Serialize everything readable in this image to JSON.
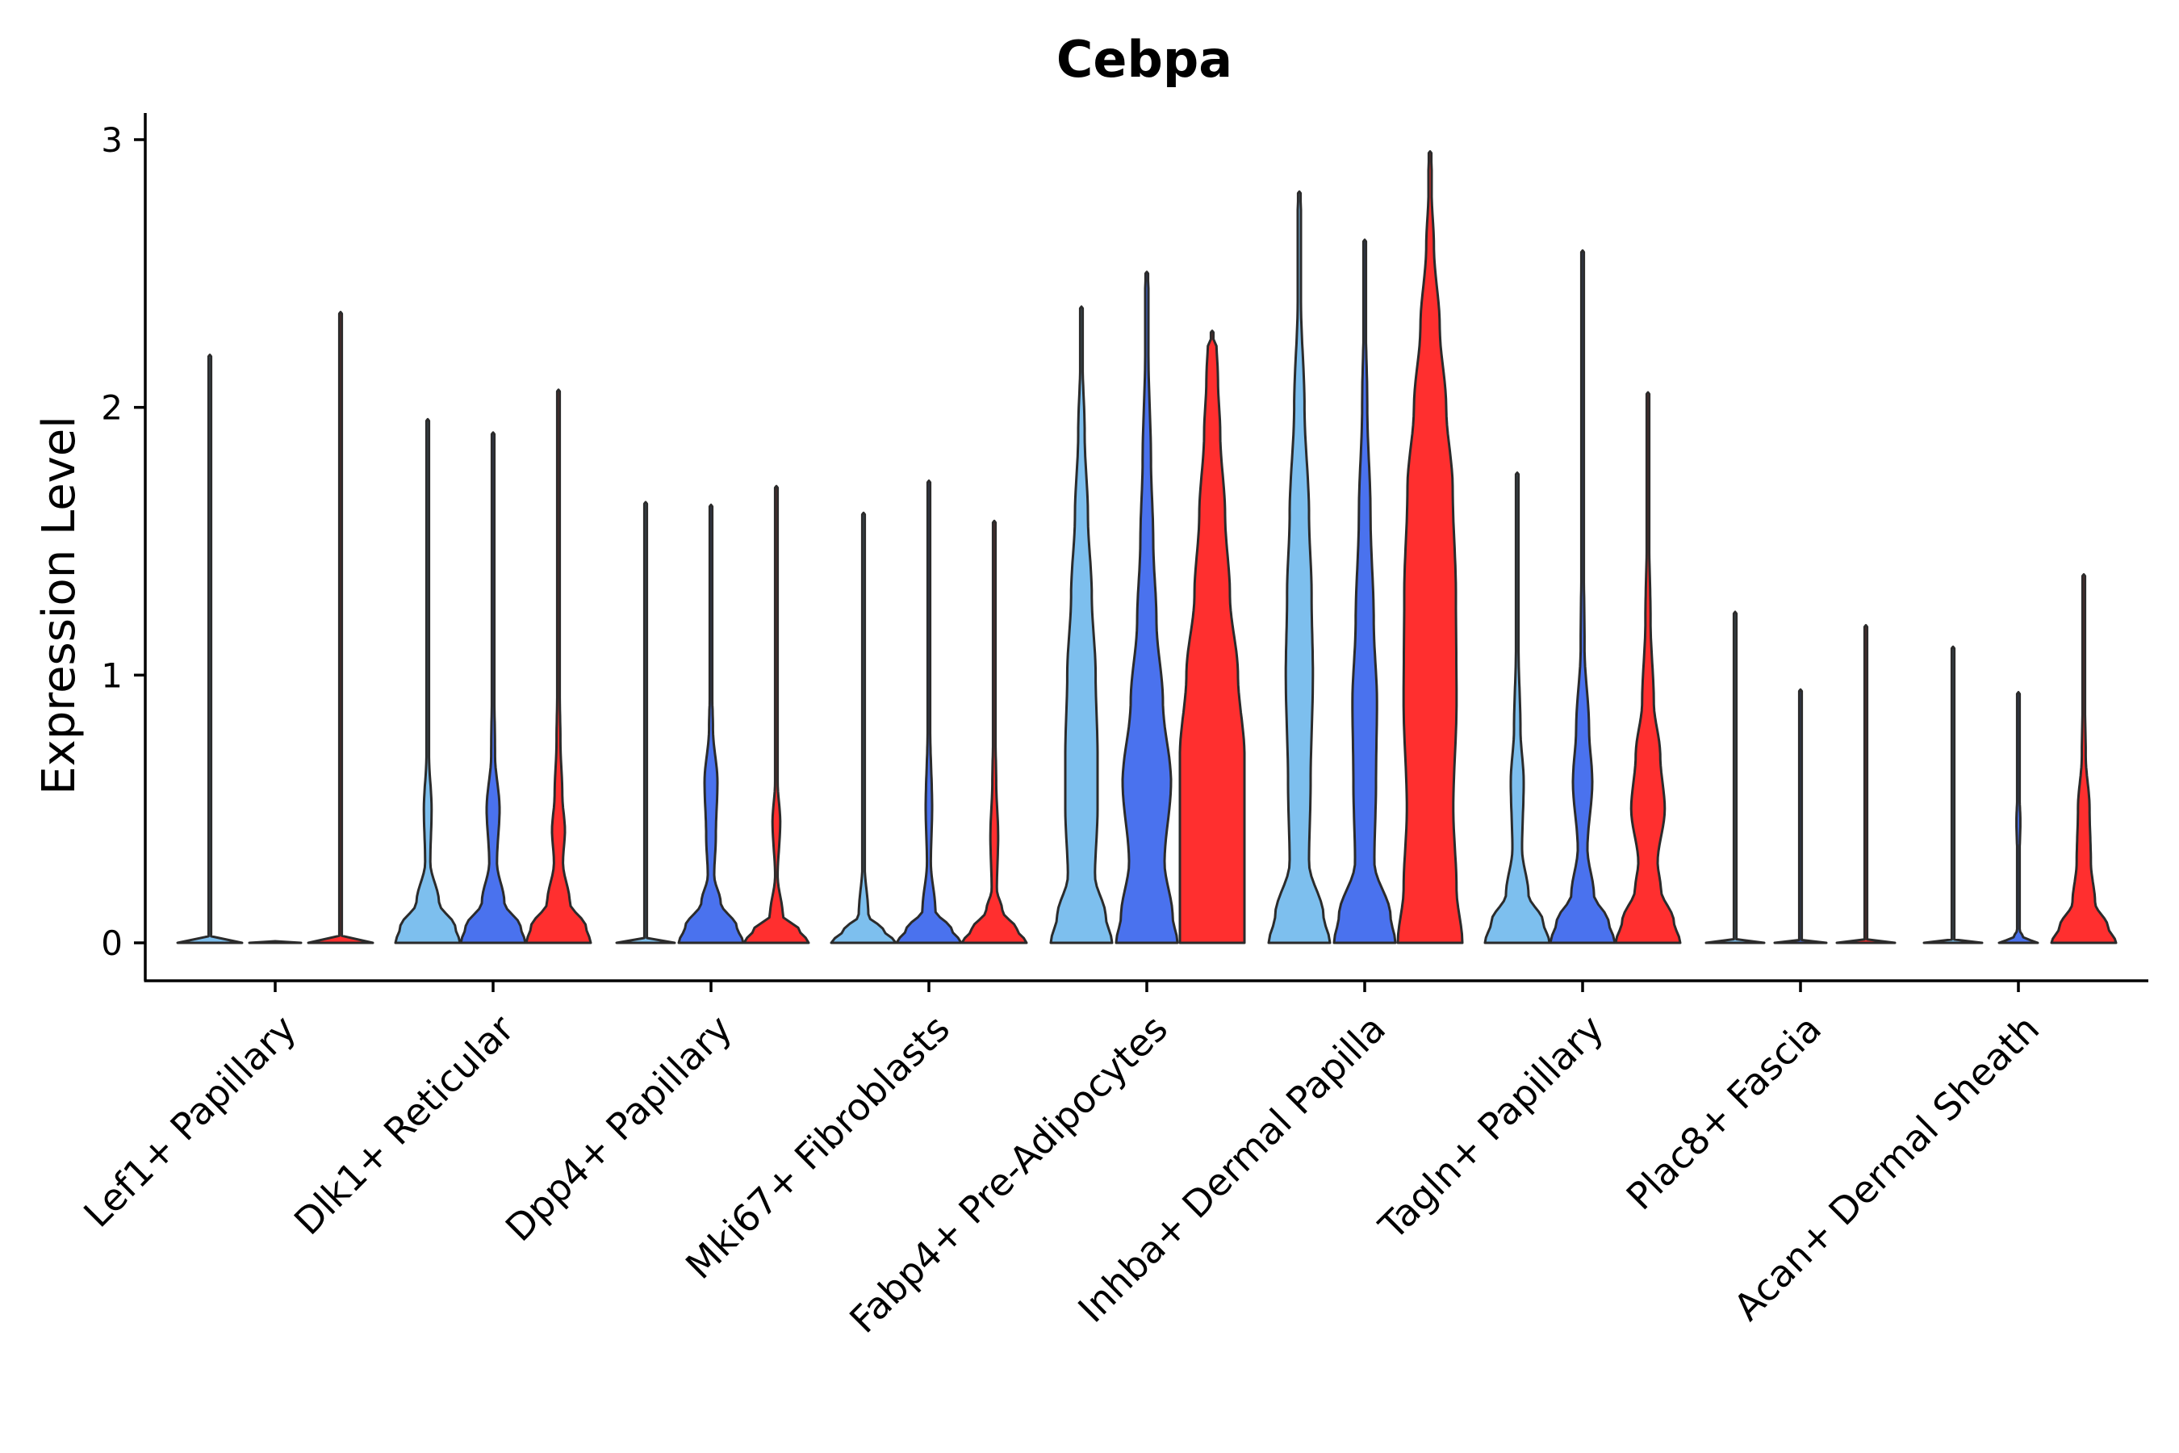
{
  "chart_data": {
    "type": "violin",
    "title": "Cebpa",
    "xlabel": "",
    "ylabel": "Expression Level",
    "ylim": [
      -0.15,
      3.1
    ],
    "yticks": [
      0,
      1,
      2,
      3
    ],
    "grid": false,
    "legend": "none",
    "group_colors": [
      "#7dbfee",
      "#4a72ee",
      "#ff2f2f"
    ],
    "categories": [
      {
        "label": "Lef1+ Papillary",
        "violins": [
          {
            "max": 2.19,
            "shape": [
              [
                0,
                1
              ],
              [
                0.002,
                0.01
              ],
              [
                0.2,
                0.0
              ]
            ]
          },
          {
            "max": 0.0,
            "shape": [
              [
                0,
                0.8
              ],
              [
                0.004,
                0.01
              ],
              [
                0.02,
                0.0
              ]
            ]
          },
          {
            "max": 2.35,
            "shape": [
              [
                0,
                1
              ],
              [
                0.002,
                0.01
              ],
              [
                0.2,
                0.0
              ]
            ]
          }
        ]
      },
      {
        "label": "Dlk1+ Reticular",
        "violins": [
          {
            "max": 1.95,
            "shape": [
              [
                0,
                1
              ],
              [
                0.06,
                0.85
              ],
              [
                0.15,
                0.35
              ],
              [
                0.3,
                0.08
              ],
              [
                0.5,
                0.12
              ],
              [
                0.7,
                0.04
              ],
              [
                1.0,
                0.02
              ],
              [
                1.5,
                0.01
              ]
            ]
          },
          {
            "max": 1.9,
            "shape": [
              [
                0,
                1
              ],
              [
                0.06,
                0.85
              ],
              [
                0.15,
                0.35
              ],
              [
                0.3,
                0.12
              ],
              [
                0.5,
                0.2
              ],
              [
                0.7,
                0.06
              ],
              [
                1.0,
                0.03
              ],
              [
                1.5,
                0.01
              ]
            ]
          },
          {
            "max": 2.06,
            "shape": [
              [
                0,
                1
              ],
              [
                0.06,
                0.85
              ],
              [
                0.15,
                0.35
              ],
              [
                0.3,
                0.14
              ],
              [
                0.42,
                0.2
              ],
              [
                0.55,
                0.12
              ],
              [
                0.75,
                0.06
              ],
              [
                1.0,
                0.03
              ],
              [
                1.5,
                0.01
              ]
            ]
          }
        ]
      },
      {
        "label": "Dpp4+ Papillary",
        "violins": [
          {
            "max": 1.64,
            "shape": [
              [
                0,
                0.9
              ],
              [
                0.004,
                0.01
              ],
              [
                0.2,
                0.0
              ]
            ]
          },
          {
            "max": 1.63,
            "shape": [
              [
                0,
                1
              ],
              [
                0.06,
                0.8
              ],
              [
                0.15,
                0.3
              ],
              [
                0.25,
                0.1
              ],
              [
                0.4,
                0.15
              ],
              [
                0.6,
                0.2
              ],
              [
                0.8,
                0.06
              ],
              [
                1.0,
                0.02
              ],
              [
                1.4,
                0.01
              ]
            ]
          },
          {
            "max": 1.7,
            "shape": [
              [
                0,
                1
              ],
              [
                0.05,
                0.7
              ],
              [
                0.1,
                0.2
              ],
              [
                0.25,
                0.04
              ],
              [
                0.45,
                0.12
              ],
              [
                0.6,
                0.04
              ],
              [
                1.0,
                0.015
              ]
            ]
          }
        ]
      },
      {
        "label": "Mki67+ Fibroblasts",
        "violins": [
          {
            "max": 1.6,
            "shape": [
              [
                0,
                1
              ],
              [
                0.05,
                0.6
              ],
              [
                0.1,
                0.15
              ],
              [
                0.3,
                0.03
              ],
              [
                0.6,
                0.02
              ],
              [
                1.0,
                0.01
              ]
            ]
          },
          {
            "max": 1.72,
            "shape": [
              [
                0,
                1
              ],
              [
                0.05,
                0.7
              ],
              [
                0.12,
                0.2
              ],
              [
                0.3,
                0.06
              ],
              [
                0.5,
                0.1
              ],
              [
                0.8,
                0.04
              ],
              [
                1.0,
                0.02
              ]
            ]
          },
          {
            "max": 1.57,
            "shape": [
              [
                0,
                1
              ],
              [
                0.05,
                0.7
              ],
              [
                0.12,
                0.25
              ],
              [
                0.2,
                0.08
              ],
              [
                0.4,
                0.12
              ],
              [
                0.6,
                0.06
              ],
              [
                0.8,
                0.03
              ],
              [
                1.1,
                0.01
              ]
            ]
          }
        ]
      },
      {
        "label": "Fabp4+ Pre-Adipocytes",
        "violins": [
          {
            "max": 2.37,
            "shape": [
              [
                0,
                0.95
              ],
              [
                0.1,
                0.75
              ],
              [
                0.25,
                0.42
              ],
              [
                0.5,
                0.5
              ],
              [
                0.7,
                0.5
              ],
              [
                1.0,
                0.44
              ],
              [
                1.3,
                0.32
              ],
              [
                1.6,
                0.2
              ],
              [
                1.9,
                0.1
              ],
              [
                2.2,
                0.03
              ]
            ]
          },
          {
            "max": 2.5,
            "shape": [
              [
                0,
                0.95
              ],
              [
                0.1,
                0.8
              ],
              [
                0.3,
                0.55
              ],
              [
                0.6,
                0.75
              ],
              [
                0.9,
                0.5
              ],
              [
                1.2,
                0.3
              ],
              [
                1.5,
                0.2
              ],
              [
                1.8,
                0.13
              ],
              [
                2.2,
                0.05
              ]
            ]
          },
          {
            "max": 2.28,
            "shape": [
              [
                0,
                1
              ],
              [
                0.3,
                1
              ],
              [
                0.7,
                1
              ],
              [
                1.0,
                0.8
              ],
              [
                1.3,
                0.55
              ],
              [
                1.6,
                0.4
              ],
              [
                1.9,
                0.25
              ],
              [
                2.1,
                0.18
              ],
              [
                2.28,
                0.12
              ]
            ]
          }
        ]
      },
      {
        "label": "Inhba+ Dermal Papilla",
        "violins": [
          {
            "max": 2.8,
            "shape": [
              [
                0,
                0.95
              ],
              [
                0.1,
                0.75
              ],
              [
                0.3,
                0.3
              ],
              [
                0.6,
                0.35
              ],
              [
                1.0,
                0.42
              ],
              [
                1.3,
                0.38
              ],
              [
                1.6,
                0.3
              ],
              [
                2.0,
                0.16
              ],
              [
                2.4,
                0.05
              ]
            ]
          },
          {
            "max": 2.62,
            "shape": [
              [
                0,
                0.95
              ],
              [
                0.1,
                0.8
              ],
              [
                0.3,
                0.3
              ],
              [
                0.6,
                0.35
              ],
              [
                0.9,
                0.38
              ],
              [
                1.2,
                0.28
              ],
              [
                1.6,
                0.18
              ],
              [
                2.0,
                0.08
              ],
              [
                2.4,
                0.02
              ]
            ]
          },
          {
            "max": 2.95,
            "shape": [
              [
                0,
                1
              ],
              [
                0.2,
                0.82
              ],
              [
                0.5,
                0.72
              ],
              [
                0.9,
                0.82
              ],
              [
                1.3,
                0.8
              ],
              [
                1.7,
                0.7
              ],
              [
                2.0,
                0.5
              ],
              [
                2.3,
                0.3
              ],
              [
                2.6,
                0.12
              ],
              [
                2.8,
                0.05
              ]
            ]
          }
        ]
      },
      {
        "label": "Tagln+ Papillary",
        "violins": [
          {
            "max": 1.75,
            "shape": [
              [
                0,
                1
              ],
              [
                0.08,
                0.8
              ],
              [
                0.18,
                0.35
              ],
              [
                0.35,
                0.15
              ],
              [
                0.6,
                0.2
              ],
              [
                0.8,
                0.1
              ],
              [
                1.1,
                0.04
              ],
              [
                1.5,
                0.01
              ]
            ]
          },
          {
            "max": 2.58,
            "shape": [
              [
                0,
                1
              ],
              [
                0.08,
                0.8
              ],
              [
                0.18,
                0.35
              ],
              [
                0.35,
                0.15
              ],
              [
                0.6,
                0.3
              ],
              [
                0.8,
                0.2
              ],
              [
                1.1,
                0.06
              ],
              [
                1.6,
                0.02
              ]
            ]
          },
          {
            "max": 2.05,
            "shape": [
              [
                0,
                1
              ],
              [
                0.08,
                0.8
              ],
              [
                0.2,
                0.4
              ],
              [
                0.3,
                0.3
              ],
              [
                0.5,
                0.52
              ],
              [
                0.7,
                0.38
              ],
              [
                0.9,
                0.18
              ],
              [
                1.2,
                0.08
              ],
              [
                1.6,
                0.02
              ]
            ]
          }
        ]
      },
      {
        "label": "Plac8+ Fascia",
        "violins": [
          {
            "max": 1.23,
            "shape": [
              [
                0,
                0.9
              ],
              [
                0.004,
                0.01
              ],
              [
                0.2,
                0.0
              ]
            ]
          },
          {
            "max": 0.94,
            "shape": [
              [
                0,
                0.8
              ],
              [
                0.004,
                0.01
              ],
              [
                0.2,
                0.0
              ]
            ]
          },
          {
            "max": 1.18,
            "shape": [
              [
                0,
                0.9
              ],
              [
                0.004,
                0.01
              ],
              [
                0.2,
                0.0
              ]
            ]
          }
        ]
      },
      {
        "label": "Acan+ Dermal Sheath",
        "violins": [
          {
            "max": 1.1,
            "shape": [
              [
                0,
                0.9
              ],
              [
                0.004,
                0.01
              ],
              [
                0.2,
                0.0
              ]
            ]
          },
          {
            "max": 0.93,
            "shape": [
              [
                0,
                0.6
              ],
              [
                0.02,
                0.15
              ],
              [
                0.05,
                0.03
              ],
              [
                0.3,
                0.03
              ],
              [
                0.45,
                0.06
              ],
              [
                0.6,
                0.02
              ],
              [
                0.9,
                0.01
              ]
            ]
          },
          {
            "max": 1.37,
            "shape": [
              [
                0,
                1
              ],
              [
                0.06,
                0.75
              ],
              [
                0.15,
                0.35
              ],
              [
                0.3,
                0.22
              ],
              [
                0.5,
                0.18
              ],
              [
                0.7,
                0.06
              ],
              [
                1.0,
                0.02
              ]
            ]
          }
        ]
      }
    ]
  }
}
